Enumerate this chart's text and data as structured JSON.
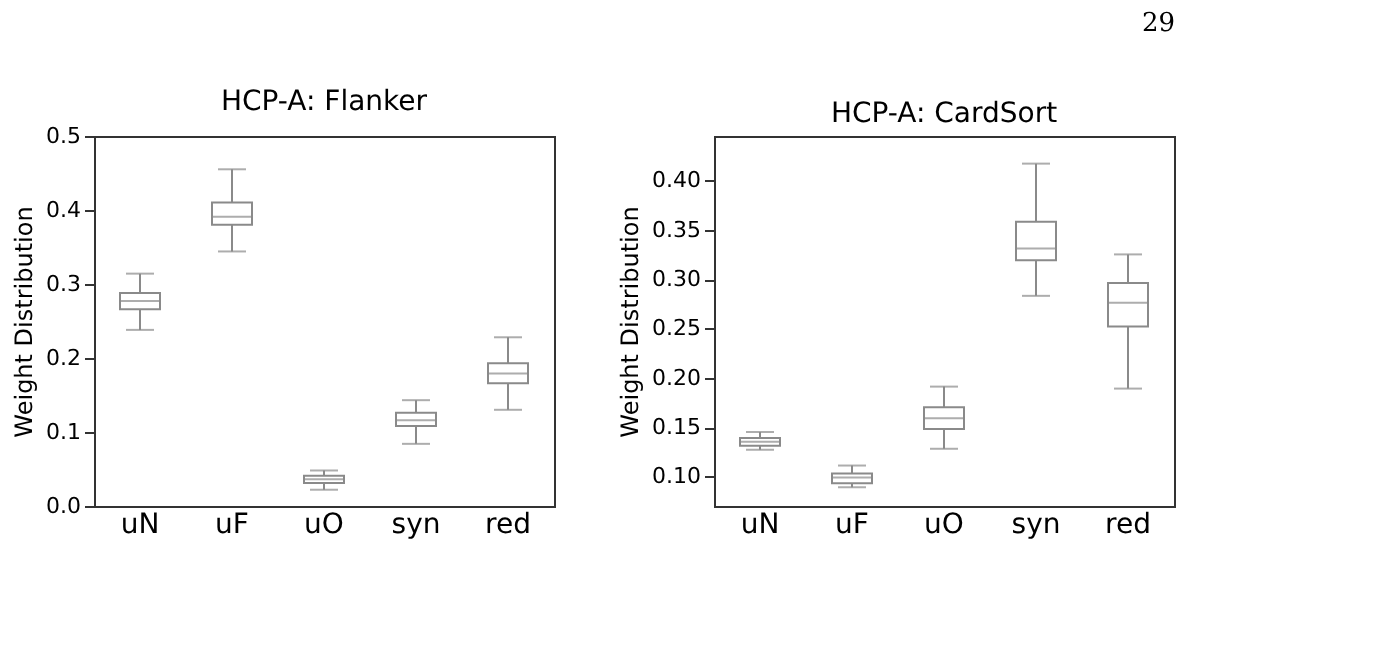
{
  "chart_data": [
    {
      "type": "box",
      "title": "HCP-A: Flanker",
      "ylabel": "Weight Distribution",
      "categories": [
        "uN",
        "uF",
        "uO",
        "syn",
        "red"
      ],
      "ylim": [
        0,
        0.5
      ],
      "yticks": [
        {
          "value": 0,
          "label": "0.0"
        },
        0.1,
        0.2,
        0.3,
        0.4,
        0.5
      ],
      "grid": false,
      "annotations": [
        "29"
      ],
      "boxes": [
        {
          "low": 0.238,
          "q1": 0.266,
          "median": 0.277,
          "q3": 0.288,
          "high": 0.314
        },
        {
          "low": 0.344,
          "q1": 0.38,
          "median": 0.391,
          "q3": 0.41,
          "high": 0.455
        },
        {
          "low": 0.022,
          "q1": 0.031,
          "median": 0.036,
          "q3": 0.041,
          "high": 0.048
        },
        {
          "low": 0.084,
          "q1": 0.108,
          "median": 0.116,
          "q3": 0.126,
          "high": 0.143
        },
        {
          "low": 0.13,
          "q1": 0.166,
          "median": 0.179,
          "q3": 0.193,
          "high": 0.228
        }
      ]
    },
    {
      "type": "box",
      "title": "HCP-A: CardSort",
      "ylabel": "Weight Distribution",
      "categories": [
        "uN",
        "uF",
        "uO",
        "syn",
        "red"
      ],
      "ylim": [
        0.07,
        0.445
      ],
      "yticks": [
        {
          "value": 0.1,
          "label": "0.10"
        },
        0.15,
        {
          "value": 0.2,
          "label": "0.20"
        },
        0.25,
        {
          "value": 0.3,
          "label": "0.30"
        },
        0.35,
        {
          "value": 0.4,
          "label": "0.40"
        }
      ],
      "grid": false,
      "boxes": [
        {
          "low": 0.127,
          "q1": 0.131,
          "median": 0.135,
          "q3": 0.139,
          "high": 0.145
        },
        {
          "low": 0.089,
          "q1": 0.093,
          "median": 0.099,
          "q3": 0.103,
          "high": 0.111
        },
        {
          "low": 0.128,
          "q1": 0.148,
          "median": 0.159,
          "q3": 0.17,
          "high": 0.191
        },
        {
          "low": 0.283,
          "q1": 0.319,
          "median": 0.331,
          "q3": 0.358,
          "high": 0.417
        },
        {
          "low": 0.189,
          "q1": 0.252,
          "median": 0.276,
          "q3": 0.296,
          "high": 0.325
        }
      ]
    }
  ]
}
